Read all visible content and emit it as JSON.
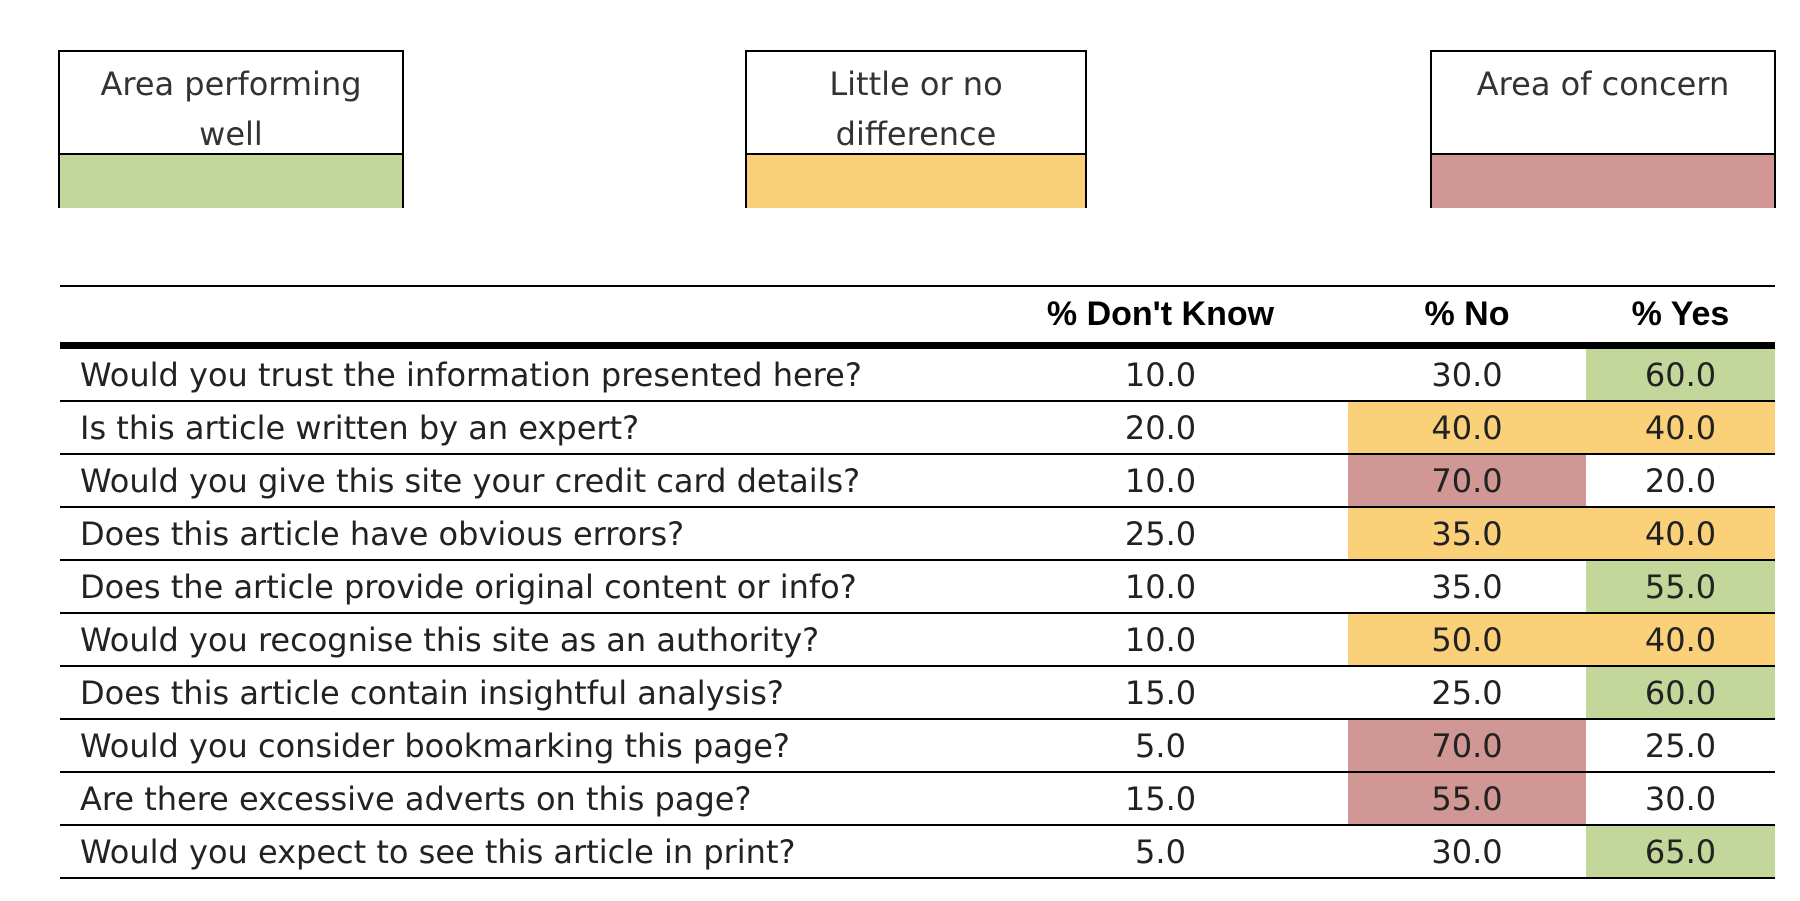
{
  "legend": [
    {
      "key": "good",
      "label": "Area performing well",
      "color": "#c4d79b"
    },
    {
      "key": "neutral",
      "label": "Little or no difference",
      "color": "#fad178"
    },
    {
      "key": "concern",
      "label": "Area of concern",
      "color": "#d09795"
    }
  ],
  "table": {
    "columns": [
      "",
      "% Don't Know",
      "% No",
      "% Yes"
    ]
  },
  "chart_data": {
    "type": "table",
    "columns": [
      "% Don't Know",
      "% No",
      "% Yes"
    ],
    "rows": [
      {
        "question": "Would you trust the information presented here?",
        "dont_know": "10.0",
        "no": "30.0",
        "yes": "60.0",
        "no_status": "",
        "yes_status": "good"
      },
      {
        "question": "Is this article written by an expert?",
        "dont_know": "20.0",
        "no": "40.0",
        "yes": "40.0",
        "no_status": "neutral",
        "yes_status": "neutral"
      },
      {
        "question": "Would you give this site your credit card details?",
        "dont_know": "10.0",
        "no": "70.0",
        "yes": "20.0",
        "no_status": "concern",
        "yes_status": ""
      },
      {
        "question": "Does this article have obvious errors?",
        "dont_know": "25.0",
        "no": "35.0",
        "yes": "40.0",
        "no_status": "neutral",
        "yes_status": "neutral"
      },
      {
        "question": "Does the article provide original content or info?",
        "dont_know": "10.0",
        "no": "35.0",
        "yes": "55.0",
        "no_status": "",
        "yes_status": "good"
      },
      {
        "question": "Would you recognise this site as an authority?",
        "dont_know": "10.0",
        "no": "50.0",
        "yes": "40.0",
        "no_status": "neutral",
        "yes_status": "neutral"
      },
      {
        "question": "Does this article contain insightful analysis?",
        "dont_know": "15.0",
        "no": "25.0",
        "yes": "60.0",
        "no_status": "",
        "yes_status": "good"
      },
      {
        "question": "Would you consider bookmarking this page?",
        "dont_know": "5.0",
        "no": "70.0",
        "yes": "25.0",
        "no_status": "concern",
        "yes_status": ""
      },
      {
        "question": "Are there excessive adverts on this page?",
        "dont_know": "15.0",
        "no": "55.0",
        "yes": "30.0",
        "no_status": "concern",
        "yes_status": ""
      },
      {
        "question": "Would you expect to see this article in print?",
        "dont_know": "5.0",
        "no": "30.0",
        "yes": "65.0",
        "no_status": "",
        "yes_status": "good"
      }
    ]
  }
}
